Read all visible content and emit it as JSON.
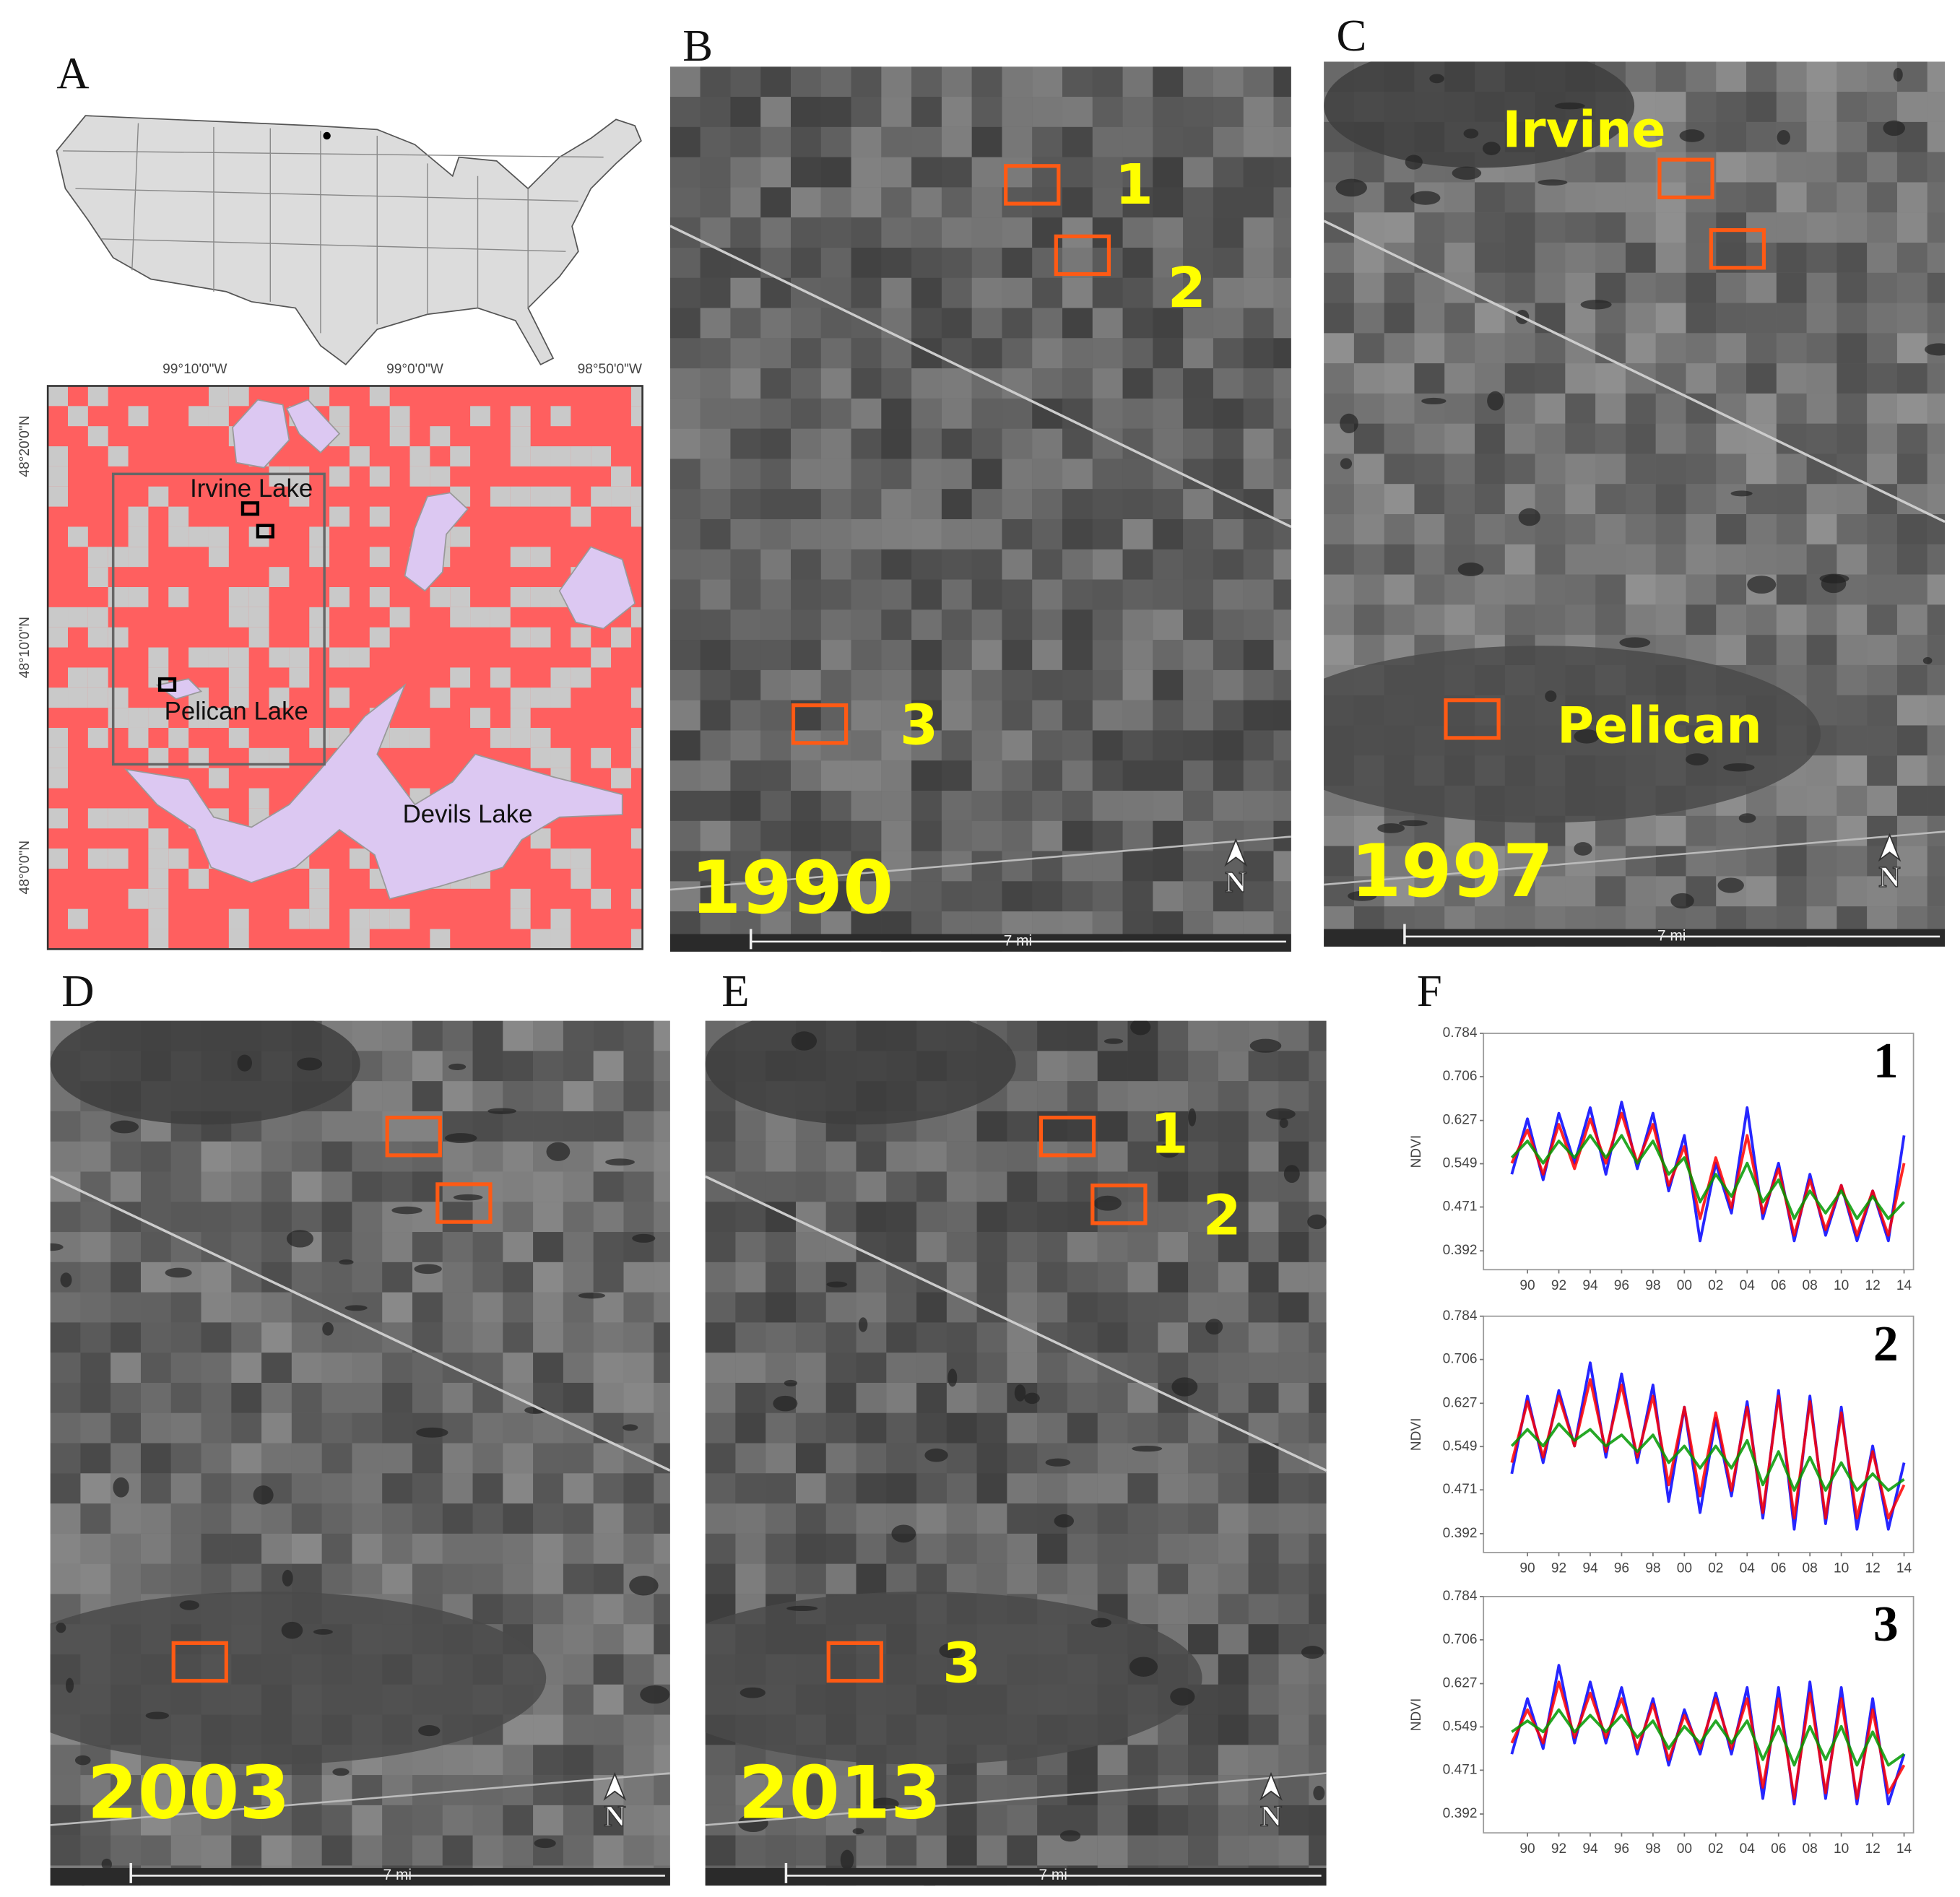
{
  "panel_letters": [
    "A",
    "B",
    "C",
    "D",
    "E",
    "F"
  ],
  "map_a": {
    "lon_labels": [
      "99°10'0\"W",
      "99°0'0\"W",
      "98°50'0\"W"
    ],
    "lat_labels": [
      "48°20'0\"N",
      "48°10'0\"N",
      "48°0'0\"N"
    ],
    "lake_labels": [
      "Irvine Lake",
      "Pelican Lake",
      "Devils Lake"
    ]
  },
  "images": [
    {
      "year": "1990",
      "site_labels": [
        "1",
        "2",
        "3"
      ],
      "scale": "7 mi",
      "north": "N"
    },
    {
      "year": "1997",
      "lake_labels": [
        "Irvine",
        "Pelican"
      ],
      "scale": "7 mi",
      "north": "N"
    },
    {
      "year": "2003",
      "scale": "7 mi",
      "north": "N"
    },
    {
      "year": "2013",
      "site_labels": [
        "1",
        "2",
        "3"
      ],
      "scale": "7 mi",
      "north": "N"
    }
  ],
  "chart_data": [
    {
      "type": "line",
      "label": "1",
      "ylabel": "NDVI",
      "x": [
        1989,
        1990,
        1991,
        1992,
        1993,
        1994,
        1995,
        1996,
        1997,
        1998,
        1999,
        2000,
        2001,
        2002,
        2003,
        2004,
        2005,
        2006,
        2007,
        2008,
        2009,
        2010,
        2011,
        2012,
        2013,
        2014
      ],
      "xlim": [
        1987.2,
        2014.6
      ],
      "ylim": [
        0.358,
        0.784
      ],
      "xticks": [
        {
          "value": 1990,
          "label": "90"
        },
        {
          "value": 1992,
          "label": "92"
        },
        {
          "value": 1994,
          "label": "94"
        },
        {
          "value": 1996,
          "label": "96"
        },
        {
          "value": 1998,
          "label": "98"
        },
        {
          "value": 2000,
          "label": "00"
        },
        {
          "value": 2002,
          "label": "02"
        },
        {
          "value": 2004,
          "label": "04"
        },
        {
          "value": 2006,
          "label": "06"
        },
        {
          "value": 2008,
          "label": "08"
        },
        {
          "value": 2010,
          "label": "10"
        },
        {
          "value": 2012,
          "label": "12"
        },
        {
          "value": 2014,
          "label": "14"
        }
      ],
      "yticks": [
        0.392,
        0.471,
        0.549,
        0.627,
        0.706,
        0.784
      ],
      "series": [
        {
          "color": "#0000ff",
          "values": [
            0.53,
            0.63,
            0.52,
            0.64,
            0.55,
            0.65,
            0.53,
            0.66,
            0.54,
            0.64,
            0.5,
            0.6,
            0.41,
            0.55,
            0.46,
            0.65,
            0.45,
            0.55,
            0.41,
            0.53,
            0.42,
            0.51,
            0.41,
            0.5,
            0.41,
            0.6
          ]
        },
        {
          "color": "#ff0000",
          "values": [
            0.55,
            0.61,
            0.53,
            0.62,
            0.54,
            0.63,
            0.55,
            0.64,
            0.55,
            0.62,
            0.51,
            0.58,
            0.45,
            0.56,
            0.47,
            0.6,
            0.46,
            0.54,
            0.42,
            0.52,
            0.43,
            0.51,
            0.42,
            0.5,
            0.42,
            0.55
          ]
        },
        {
          "color": "#009900",
          "values": [
            0.56,
            0.59,
            0.55,
            0.59,
            0.56,
            0.6,
            0.56,
            0.6,
            0.55,
            0.59,
            0.53,
            0.56,
            0.48,
            0.53,
            0.49,
            0.55,
            0.48,
            0.52,
            0.45,
            0.5,
            0.46,
            0.5,
            0.45,
            0.49,
            0.45,
            0.48
          ]
        }
      ]
    },
    {
      "type": "line",
      "label": "2",
      "ylabel": "NDVI",
      "x": [
        1989,
        1990,
        1991,
        1992,
        1993,
        1994,
        1995,
        1996,
        1997,
        1998,
        1999,
        2000,
        2001,
        2002,
        2003,
        2004,
        2005,
        2006,
        2007,
        2008,
        2009,
        2010,
        2011,
        2012,
        2013,
        2014
      ],
      "xlim": [
        1987.2,
        2014.6
      ],
      "ylim": [
        0.358,
        0.784
      ],
      "xticks": [
        {
          "value": 1990,
          "label": "90"
        },
        {
          "value": 1992,
          "label": "92"
        },
        {
          "value": 1994,
          "label": "94"
        },
        {
          "value": 1996,
          "label": "96"
        },
        {
          "value": 1998,
          "label": "98"
        },
        {
          "value": 2000,
          "label": "00"
        },
        {
          "value": 2002,
          "label": "02"
        },
        {
          "value": 2004,
          "label": "04"
        },
        {
          "value": 2006,
          "label": "06"
        },
        {
          "value": 2008,
          "label": "08"
        },
        {
          "value": 2010,
          "label": "10"
        },
        {
          "value": 2012,
          "label": "12"
        },
        {
          "value": 2014,
          "label": "14"
        }
      ],
      "yticks": [
        0.392,
        0.471,
        0.549,
        0.627,
        0.706,
        0.784
      ],
      "series": [
        {
          "color": "#0000ff",
          "values": [
            0.5,
            0.64,
            0.52,
            0.65,
            0.55,
            0.7,
            0.53,
            0.68,
            0.52,
            0.66,
            0.45,
            0.62,
            0.43,
            0.6,
            0.46,
            0.63,
            0.42,
            0.65,
            0.4,
            0.64,
            0.41,
            0.62,
            0.4,
            0.55,
            0.4,
            0.52
          ]
        },
        {
          "color": "#ff0000",
          "values": [
            0.52,
            0.63,
            0.53,
            0.64,
            0.55,
            0.67,
            0.54,
            0.66,
            0.53,
            0.64,
            0.48,
            0.62,
            0.46,
            0.61,
            0.47,
            0.62,
            0.43,
            0.64,
            0.42,
            0.63,
            0.42,
            0.61,
            0.42,
            0.54,
            0.42,
            0.48
          ]
        },
        {
          "color": "#009900",
          "values": [
            0.55,
            0.58,
            0.55,
            0.59,
            0.56,
            0.58,
            0.55,
            0.57,
            0.54,
            0.57,
            0.52,
            0.55,
            0.51,
            0.55,
            0.51,
            0.56,
            0.48,
            0.54,
            0.47,
            0.53,
            0.47,
            0.52,
            0.47,
            0.5,
            0.47,
            0.49
          ]
        }
      ]
    },
    {
      "type": "line",
      "label": "3",
      "ylabel": "NDVI",
      "x": [
        1989,
        1990,
        1991,
        1992,
        1993,
        1994,
        1995,
        1996,
        1997,
        1998,
        1999,
        2000,
        2001,
        2002,
        2003,
        2004,
        2005,
        2006,
        2007,
        2008,
        2009,
        2010,
        2011,
        2012,
        2013,
        2014
      ],
      "xlim": [
        1987.2,
        2014.6
      ],
      "ylim": [
        0.358,
        0.784
      ],
      "xticks": [
        {
          "value": 1990,
          "label": "90"
        },
        {
          "value": 1992,
          "label": "92"
        },
        {
          "value": 1994,
          "label": "94"
        },
        {
          "value": 1996,
          "label": "96"
        },
        {
          "value": 1998,
          "label": "98"
        },
        {
          "value": 2000,
          "label": "00"
        },
        {
          "value": 2002,
          "label": "02"
        },
        {
          "value": 2004,
          "label": "04"
        },
        {
          "value": 2006,
          "label": "06"
        },
        {
          "value": 2008,
          "label": "08"
        },
        {
          "value": 2010,
          "label": "10"
        },
        {
          "value": 2012,
          "label": "12"
        },
        {
          "value": 2014,
          "label": "14"
        }
      ],
      "yticks": [
        0.392,
        0.471,
        0.549,
        0.627,
        0.706,
        0.784
      ],
      "series": [
        {
          "color": "#0000ff",
          "values": [
            0.5,
            0.6,
            0.51,
            0.66,
            0.52,
            0.63,
            0.52,
            0.62,
            0.5,
            0.6,
            0.48,
            0.58,
            0.5,
            0.61,
            0.5,
            0.62,
            0.42,
            0.62,
            0.41,
            0.63,
            0.42,
            0.62,
            0.41,
            0.6,
            0.41,
            0.5
          ]
        },
        {
          "color": "#ff0000",
          "values": [
            0.52,
            0.58,
            0.52,
            0.63,
            0.53,
            0.61,
            0.53,
            0.6,
            0.51,
            0.59,
            0.49,
            0.57,
            0.51,
            0.6,
            0.51,
            0.6,
            0.44,
            0.6,
            0.42,
            0.61,
            0.43,
            0.6,
            0.42,
            0.58,
            0.43,
            0.48
          ]
        },
        {
          "color": "#009900",
          "values": [
            0.54,
            0.56,
            0.54,
            0.58,
            0.54,
            0.57,
            0.54,
            0.57,
            0.53,
            0.56,
            0.51,
            0.55,
            0.52,
            0.56,
            0.52,
            0.56,
            0.49,
            0.55,
            0.48,
            0.55,
            0.49,
            0.55,
            0.48,
            0.54,
            0.48,
            0.5
          ]
        }
      ]
    }
  ]
}
